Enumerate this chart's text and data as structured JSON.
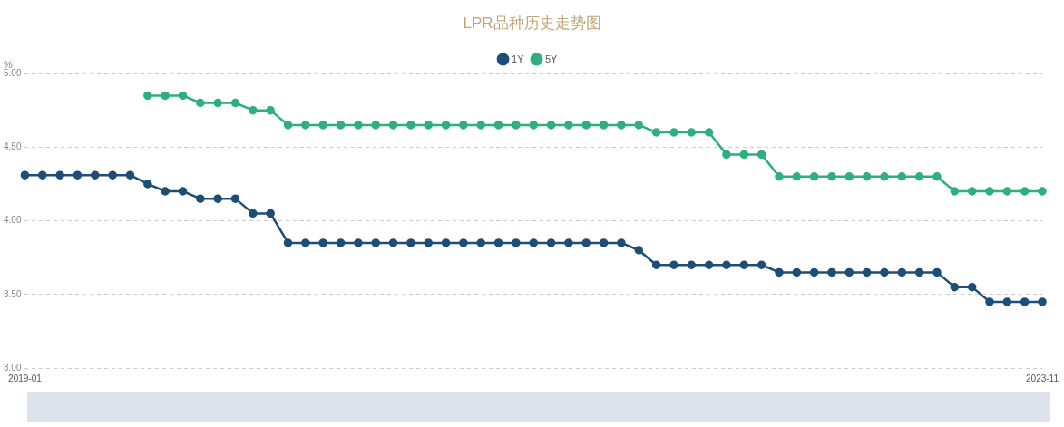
{
  "chart_data": {
    "type": "line",
    "title": "LPR品种历史走势图",
    "ylabel": "%",
    "categories": [
      "2019-01",
      null,
      null,
      null,
      null,
      null,
      null,
      null,
      null,
      null,
      null,
      null,
      null,
      null,
      null,
      null,
      null,
      null,
      null,
      null,
      null,
      null,
      null,
      null,
      null,
      null,
      null,
      null,
      null,
      null,
      null,
      null,
      null,
      null,
      null,
      null,
      null,
      null,
      null,
      null,
      null,
      null,
      null,
      null,
      null,
      null,
      null,
      null,
      null,
      null,
      null,
      null,
      null,
      null,
      null,
      null,
      null,
      null,
      "2023-11"
    ],
    "series": [
      {
        "name": "1Y",
        "color": "#1d4e78",
        "values": [
          4.31,
          4.31,
          4.31,
          4.31,
          4.31,
          4.31,
          4.31,
          4.25,
          4.2,
          4.2,
          4.15,
          4.15,
          4.15,
          4.05,
          4.05,
          3.85,
          3.85,
          3.85,
          3.85,
          3.85,
          3.85,
          3.85,
          3.85,
          3.85,
          3.85,
          3.85,
          3.85,
          3.85,
          3.85,
          3.85,
          3.85,
          3.85,
          3.85,
          3.85,
          3.85,
          3.8,
          3.7,
          3.7,
          3.7,
          3.7,
          3.7,
          3.7,
          3.7,
          3.65,
          3.65,
          3.65,
          3.65,
          3.65,
          3.65,
          3.65,
          3.65,
          3.65,
          3.65,
          3.55,
          3.55,
          3.45,
          3.45,
          3.45,
          3.45
        ]
      },
      {
        "name": "5Y",
        "color": "#2eb07e",
        "values": [
          null,
          null,
          null,
          null,
          null,
          null,
          null,
          4.85,
          4.85,
          4.85,
          4.8,
          4.8,
          4.8,
          4.75,
          4.75,
          4.65,
          4.65,
          4.65,
          4.65,
          4.65,
          4.65,
          4.65,
          4.65,
          4.65,
          4.65,
          4.65,
          4.65,
          4.65,
          4.65,
          4.65,
          4.65,
          4.65,
          4.65,
          4.65,
          4.65,
          4.65,
          4.6,
          4.6,
          4.6,
          4.6,
          4.45,
          4.45,
          4.45,
          4.3,
          4.3,
          4.3,
          4.3,
          4.3,
          4.3,
          4.3,
          4.3,
          4.3,
          4.3,
          4.2,
          4.2,
          4.2,
          4.2,
          4.2,
          4.2
        ]
      }
    ],
    "ylim": [
      3,
      5
    ],
    "yticks": [
      {
        "value": 3,
        "label": "3.00"
      },
      {
        "value": 3.5,
        "label": "3.50"
      },
      {
        "value": 4,
        "label": "4.00"
      },
      {
        "value": 4.5,
        "label": "4.50"
      },
      {
        "value": 5,
        "label": "5.00"
      }
    ],
    "grid": "y",
    "legend": "top",
    "marker": "circle",
    "line_style": "solid"
  }
}
